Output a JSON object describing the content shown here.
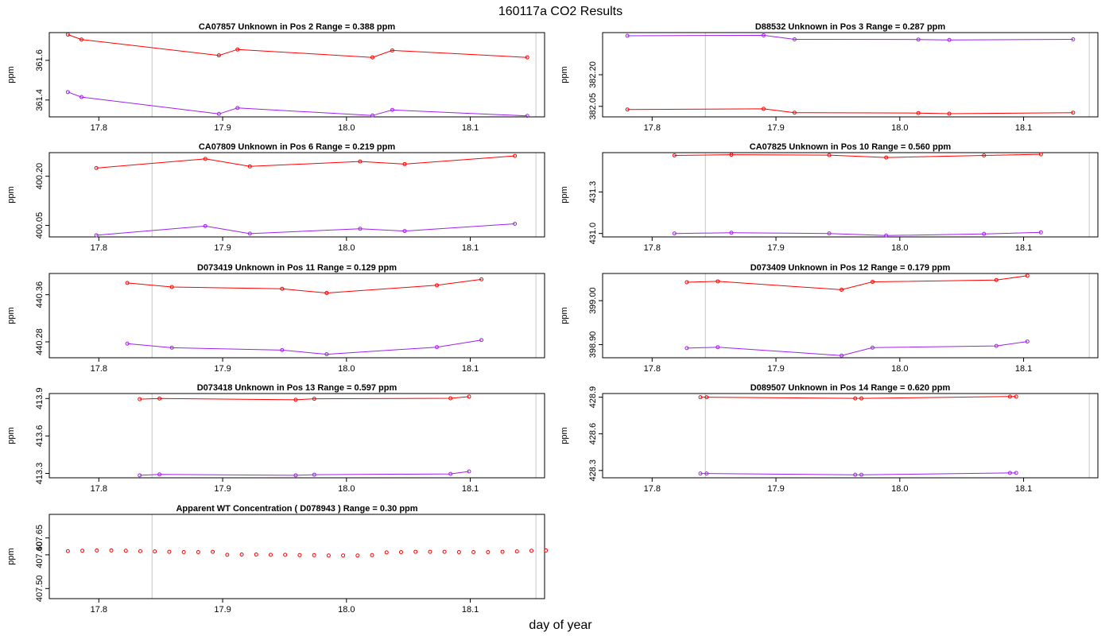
{
  "figure": {
    "title": "160117a  CO2 Results",
    "xlabel": "day of year"
  },
  "chart_data": [
    {
      "type": "line",
      "title": "CA07857    Unknown in Pos 2         Range =  0.388 ppm",
      "ylabel": "ppm",
      "xlim": [
        17.76,
        18.16
      ],
      "ylim": [
        361.315,
        361.74
      ],
      "xticks": [
        "17.8",
        "17.9",
        "18.0",
        "18.1"
      ],
      "yticks": [
        "361.4",
        "361.6"
      ],
      "vlines": [
        17.843,
        18.153
      ],
      "series": [
        {
          "name": "red",
          "color": "#ff0000",
          "x": [
            17.775,
            17.786,
            17.897,
            17.912,
            18.021,
            18.037,
            18.146
          ],
          "y": [
            361.73,
            361.705,
            361.625,
            361.655,
            361.615,
            361.65,
            361.615
          ]
        },
        {
          "name": "purple",
          "color": "#a020f0",
          "x": [
            17.775,
            17.786,
            17.897,
            17.912,
            18.021,
            18.037,
            18.146
          ],
          "y": [
            361.44,
            361.415,
            361.33,
            361.36,
            361.322,
            361.35,
            361.32
          ]
        }
      ]
    },
    {
      "type": "line",
      "title": "D88532    Unknown in Pos 3         Range =  0.287 ppm",
      "ylabel": "ppm",
      "xlim": [
        17.76,
        18.16
      ],
      "ylim": [
        382.0,
        382.4
      ],
      "xticks": [
        "17.8",
        "17.9",
        "18.0",
        "18.1"
      ],
      "yticks": [
        "382.05",
        "382.20"
      ],
      "vlines": [
        17.843,
        18.153
      ],
      "series": [
        {
          "name": "red",
          "color": "#ff0000",
          "x": [
            17.78,
            17.89,
            17.915,
            18.015,
            18.04,
            18.14
          ],
          "y": [
            382.035,
            382.038,
            382.02,
            382.018,
            382.015,
            382.02
          ]
        },
        {
          "name": "purple",
          "color": "#a020f0",
          "x": [
            17.78,
            17.89,
            17.915,
            18.015,
            18.04,
            18.14
          ],
          "y": [
            382.385,
            382.387,
            382.368,
            382.367,
            382.365,
            382.368
          ]
        }
      ]
    },
    {
      "type": "line",
      "title": "CA07809    Unknown in Pos 6         Range =  0.219 ppm",
      "ylabel": "ppm",
      "xlim": [
        17.76,
        18.16
      ],
      "ylim": [
        400.015,
        400.272
      ],
      "xticks": [
        "17.8",
        "17.9",
        "18.0",
        "18.1"
      ],
      "yticks": [
        "400.05",
        "400.20"
      ],
      "vlines": [
        17.843,
        18.153
      ],
      "series": [
        {
          "name": "red",
          "color": "#ff0000",
          "x": [
            17.798,
            17.886,
            17.922,
            18.011,
            18.047,
            18.136
          ],
          "y": [
            400.225,
            400.253,
            400.23,
            400.245,
            400.237,
            400.262
          ]
        },
        {
          "name": "purple",
          "color": "#a020f0",
          "x": [
            17.798,
            17.886,
            17.922,
            18.011,
            18.047,
            18.136
          ],
          "y": [
            400.02,
            400.048,
            400.025,
            400.04,
            400.033,
            400.055
          ]
        }
      ]
    },
    {
      "type": "line",
      "title": "CA07825    Unknown in Pos 10         Range =  0.560 ppm",
      "ylabel": "ppm",
      "xlim": [
        17.76,
        18.16
      ],
      "ylim": [
        430.975,
        431.585
      ],
      "xticks": [
        "17.8",
        "17.9",
        "18.0",
        "18.1"
      ],
      "yticks": [
        "431.0",
        "431.3"
      ],
      "vlines": [
        17.843,
        18.153
      ],
      "series": [
        {
          "name": "red",
          "color": "#ff0000",
          "x": [
            17.818,
            17.864,
            17.943,
            17.989,
            18.068,
            18.114
          ],
          "y": [
            431.565,
            431.57,
            431.567,
            431.55,
            431.565,
            431.573
          ]
        },
        {
          "name": "purple",
          "color": "#a020f0",
          "x": [
            17.818,
            17.864,
            17.943,
            17.989,
            18.068,
            18.114
          ],
          "y": [
            431.0,
            431.005,
            431.0,
            430.985,
            430.997,
            431.008
          ]
        }
      ]
    },
    {
      "type": "line",
      "title": "D073419    Unknown in Pos 11         Range =  0.129 ppm",
      "ylabel": "ppm",
      "xlim": [
        17.76,
        18.16
      ],
      "ylim": [
        440.253,
        440.396
      ],
      "xticks": [
        "17.8",
        "17.9",
        "18.0",
        "18.1"
      ],
      "yticks": [
        "440.28",
        "440.36"
      ],
      "vlines": [
        17.843,
        18.153
      ],
      "series": [
        {
          "name": "red",
          "color": "#ff0000",
          "x": [
            17.823,
            17.859,
            17.948,
            17.984,
            18.073,
            18.109
          ],
          "y": [
            440.38,
            440.373,
            440.37,
            440.363,
            440.376,
            440.386
          ]
        },
        {
          "name": "purple",
          "color": "#a020f0",
          "x": [
            17.823,
            17.859,
            17.948,
            17.984,
            18.073,
            18.109
          ],
          "y": [
            440.277,
            440.27,
            440.266,
            440.259,
            440.271,
            440.283
          ]
        }
      ]
    },
    {
      "type": "line",
      "title": "D073409    Unknown in Pos 12         Range =  0.179 ppm",
      "ylabel": "ppm",
      "xlim": [
        17.76,
        18.16
      ],
      "ylim": [
        398.87,
        399.062
      ],
      "xticks": [
        "17.8",
        "17.9",
        "18.0",
        "18.1"
      ],
      "yticks": [
        "398.90",
        "399.00"
      ],
      "vlines": [
        17.843,
        18.153
      ],
      "series": [
        {
          "name": "red",
          "color": "#ff0000",
          "x": [
            17.828,
            17.853,
            17.953,
            17.978,
            18.078,
            18.103
          ],
          "y": [
            399.042,
            399.044,
            399.025,
            399.043,
            399.047,
            399.057
          ]
        },
        {
          "name": "purple",
          "color": "#a020f0",
          "x": [
            17.828,
            17.853,
            17.953,
            17.978,
            18.078,
            18.103
          ],
          "y": [
            398.892,
            398.894,
            398.875,
            398.893,
            398.897,
            398.907
          ]
        }
      ]
    },
    {
      "type": "line",
      "title": "D073418    Unknown in Pos 13         Range =  0.597 ppm",
      "ylabel": "ppm",
      "xlim": [
        17.76,
        18.16
      ],
      "ylim": [
        413.265,
        413.94
      ],
      "xticks": [
        "17.8",
        "17.9",
        "18.0",
        "18.1"
      ],
      "yticks": [
        "413.3",
        "413.6",
        "413.9"
      ],
      "vlines": [
        17.843,
        18.153
      ],
      "series": [
        {
          "name": "red",
          "color": "#ff0000",
          "x": [
            17.833,
            17.849,
            17.959,
            17.974,
            18.084,
            18.099
          ],
          "y": [
            413.895,
            413.9,
            413.89,
            413.898,
            413.902,
            413.915
          ]
        },
        {
          "name": "purple",
          "color": "#a020f0",
          "x": [
            17.833,
            17.849,
            17.959,
            17.974,
            18.084,
            18.099
          ],
          "y": [
            413.285,
            413.292,
            413.285,
            413.29,
            413.296,
            413.316
          ]
        }
      ]
    },
    {
      "type": "line",
      "title": "D089507    Unknown in Pos 14         Range =  0.620 ppm",
      "ylabel": "ppm",
      "xlim": [
        17.76,
        18.16
      ],
      "ylim": [
        428.24,
        428.93
      ],
      "xticks": [
        "17.8",
        "17.9",
        "18.0",
        "18.1"
      ],
      "yticks": [
        "428.3",
        "428.6",
        "428.9"
      ],
      "vlines": [
        17.843,
        18.153
      ],
      "series": [
        {
          "name": "red",
          "color": "#ff0000",
          "x": [
            17.839,
            17.844,
            17.964,
            17.969,
            18.089,
            18.094
          ],
          "y": [
            428.9,
            428.9,
            428.89,
            428.89,
            428.905,
            428.905
          ]
        },
        {
          "name": "purple",
          "color": "#a020f0",
          "x": [
            17.839,
            17.844,
            17.964,
            17.969,
            18.089,
            18.094
          ],
          "y": [
            428.275,
            428.275,
            428.265,
            428.265,
            428.28,
            428.28
          ]
        }
      ]
    },
    {
      "type": "scatter",
      "title": "Apparent WT Concentration ( D078943 )         Range = 0.30 ppm",
      "ylabel": "ppm",
      "xlim": [
        17.76,
        18.16
      ],
      "ylim": [
        407.47,
        407.72
      ],
      "xticks": [
        "17.8",
        "17.9",
        "18.0",
        "18.1"
      ],
      "yticks": [
        "407.50",
        "407.60",
        "407.65"
      ],
      "vlines": [
        17.843,
        18.153
      ],
      "series": [
        {
          "name": "red",
          "color": "#ff0000",
          "x": [
            17.775,
            17.7867,
            17.7984,
            17.8101,
            17.8218,
            17.8335,
            17.8452,
            17.8569,
            17.8686,
            17.8803,
            17.892,
            17.9037,
            17.9154,
            17.9271,
            17.9388,
            17.9505,
            17.9622,
            17.9739,
            17.9856,
            17.9973,
            18.009,
            18.0207,
            18.0324,
            18.0441,
            18.0558,
            18.0675,
            18.0792,
            18.0909,
            18.1026,
            18.1143,
            18.126,
            18.1377,
            18.1494,
            18.1611
          ],
          "y": [
            407.611,
            407.612,
            407.613,
            407.613,
            407.612,
            407.611,
            407.61,
            407.609,
            407.608,
            407.608,
            407.609,
            407.6,
            407.601,
            407.601,
            407.6,
            407.6,
            407.599,
            407.599,
            407.598,
            407.598,
            407.598,
            407.599,
            407.607,
            407.608,
            407.609,
            407.609,
            407.609,
            407.608,
            407.608,
            407.608,
            407.609,
            407.61,
            407.612,
            407.613
          ]
        }
      ]
    }
  ]
}
